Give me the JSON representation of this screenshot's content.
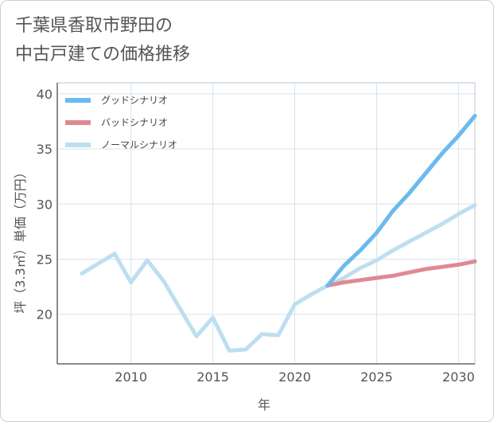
{
  "title_lines": [
    "千葉県香取市野田の",
    "中古戸建ての価格推移"
  ],
  "chart_data": {
    "type": "line",
    "title": "千葉県香取市野田の中古戸建ての価格推移",
    "xlabel": "年",
    "ylabel": "坪（3.3㎡）単価（万円）",
    "xlim": [
      2005.5,
      2031
    ],
    "ylim": [
      15.5,
      41
    ],
    "xticks": [
      2010,
      2015,
      2020,
      2025,
      2030
    ],
    "yticks": [
      20,
      25,
      30,
      35,
      40
    ],
    "grid": true,
    "legend_position": "top-left",
    "series": [
      {
        "name": "グッドシナリオ",
        "color": "#6bbaee",
        "x": [
          2022,
          2023,
          2024,
          2025,
          2026,
          2027,
          2028,
          2029,
          2030,
          2031
        ],
        "y": [
          22.6,
          24.4,
          25.8,
          27.4,
          29.4,
          31.0,
          32.8,
          34.6,
          36.2,
          38.0
        ]
      },
      {
        "name": "バッドシナリオ",
        "color": "#de8a92",
        "x": [
          2022,
          2023,
          2024,
          2025,
          2026,
          2027,
          2028,
          2029,
          2030,
          2031
        ],
        "y": [
          22.6,
          22.9,
          23.1,
          23.3,
          23.5,
          23.8,
          24.1,
          24.3,
          24.5,
          24.8
        ]
      },
      {
        "name": "ノーマルシナリオ",
        "color": "#bddff0",
        "x": [
          2007,
          2008,
          2009,
          2010,
          2011,
          2012,
          2013,
          2014,
          2015,
          2016,
          2017,
          2018,
          2019,
          2020,
          2021,
          2022,
          2023,
          2024,
          2025,
          2026,
          2027,
          2028,
          2029,
          2030,
          2031
        ],
        "y": [
          23.7,
          24.6,
          25.5,
          22.9,
          24.9,
          23.0,
          20.5,
          18.0,
          19.7,
          16.7,
          16.8,
          18.2,
          18.1,
          20.9,
          21.8,
          22.6,
          23.3,
          24.2,
          24.9,
          25.8,
          26.6,
          27.4,
          28.2,
          29.1,
          29.9
        ]
      }
    ]
  }
}
